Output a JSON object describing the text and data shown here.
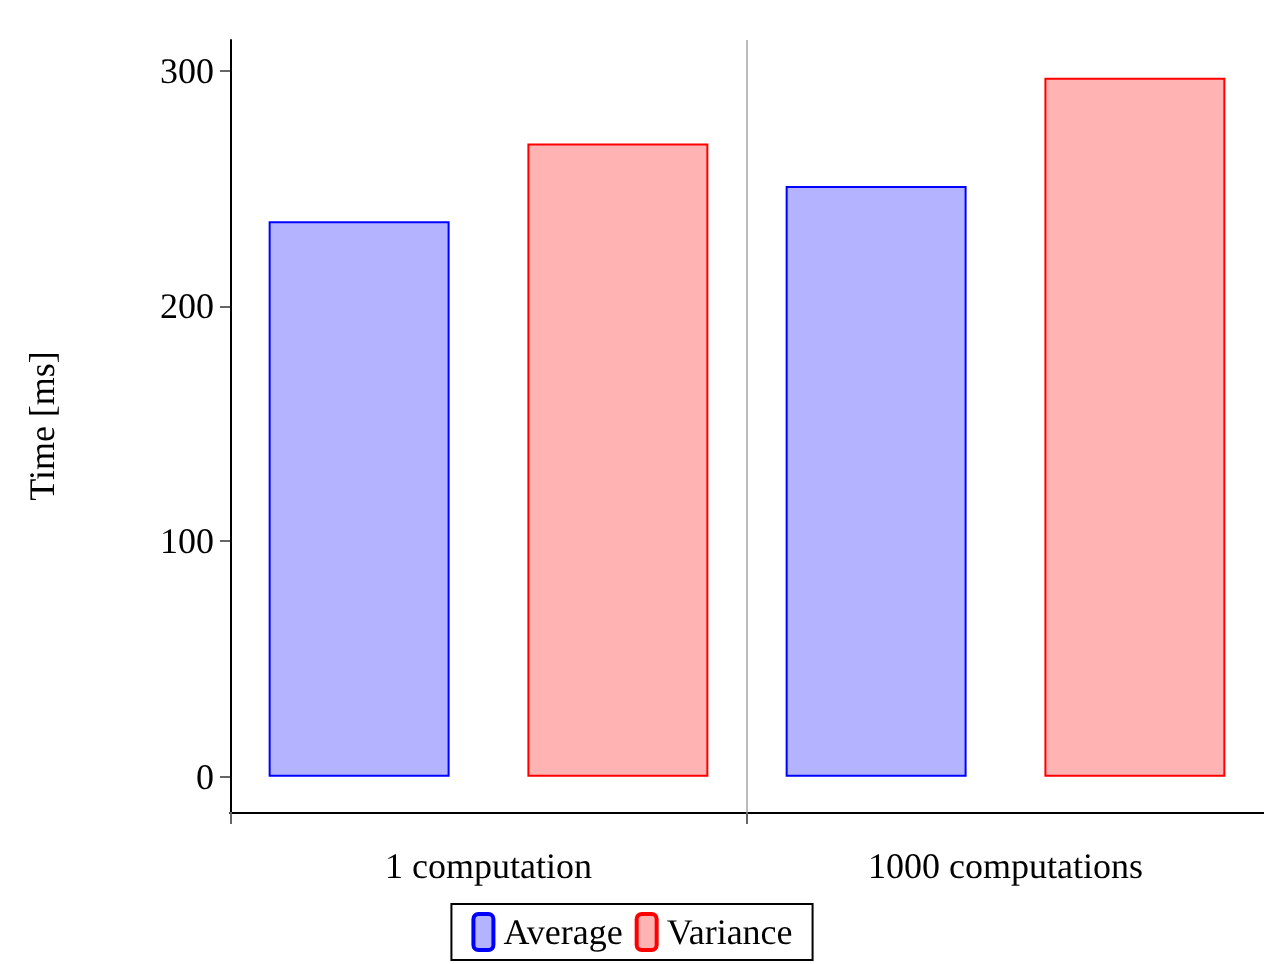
{
  "chart_data": {
    "type": "bar",
    "ylabel": "Time [ms]",
    "categories": [
      "1 computation",
      "1000 computations"
    ],
    "series": [
      {
        "name": "Average",
        "color": "#b3b3ff",
        "values": [
          236,
          251
        ]
      },
      {
        "name": "Variance",
        "color": "#ffb3b3",
        "values": [
          269,
          297
        ]
      }
    ],
    "ylim": [
      -15,
      313
    ],
    "yticks": [
      0,
      100,
      200,
      300
    ],
    "grid": "x",
    "legend": "bottom"
  }
}
